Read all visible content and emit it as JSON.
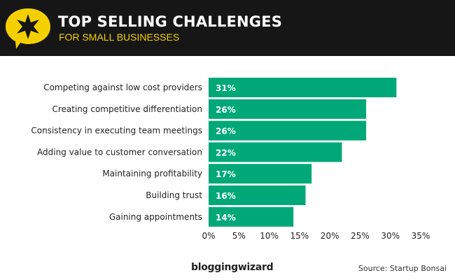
{
  "header": {
    "title": "TOP SELLING CHALLENGES",
    "subtitle": "FOR SMALL BUSINESSES",
    "logo_icon": "star-speech-bubble-icon"
  },
  "colors": {
    "bar": "#00a878",
    "header_bg": "#161616",
    "accent": "#f5d000"
  },
  "chart_data": {
    "type": "bar",
    "orientation": "horizontal",
    "title": "TOP SELLING CHALLENGES",
    "subtitle": "FOR SMALL BUSINESSES",
    "categories": [
      "Competing against low cost providers",
      "Creating competitive differentiation",
      "Consistency in executing team meetings",
      "Adding value to customer conversation",
      "Maintaining profitability",
      "Building trust",
      "Gaining appointments"
    ],
    "values": [
      31,
      26,
      26,
      22,
      17,
      16,
      14
    ],
    "value_labels": [
      "31%",
      "26%",
      "26%",
      "22%",
      "17%",
      "16%",
      "14%"
    ],
    "xlim": [
      0,
      35
    ],
    "xticks": [
      "0%",
      "5%",
      "10%",
      "15%",
      "20%",
      "25%",
      "30%",
      "35%"
    ],
    "grid": false
  },
  "footer": {
    "brand": "bloggingwizard",
    "source": "Source: Startup Bonsai"
  }
}
